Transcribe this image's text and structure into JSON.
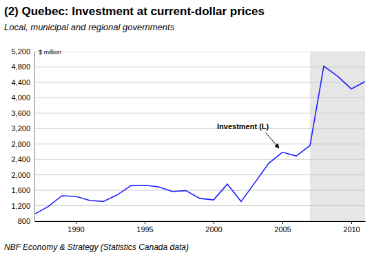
{
  "chart_data": {
    "type": "line",
    "title": "(2) Quebec: Investment at current-dollar prices",
    "subtitle": "Local, municipal and regional governments",
    "y_label": "$ million",
    "source": "NBF Economy & Strategy (Statistics Canada data)",
    "x": [
      1987,
      1988,
      1989,
      1990,
      1991,
      1992,
      1993,
      1994,
      1995,
      1996,
      1997,
      1998,
      1999,
      2000,
      2001,
      2002,
      2003,
      2004,
      2005,
      2006,
      2007,
      2008,
      2009,
      2010,
      2011
    ],
    "values": [
      980,
      1180,
      1460,
      1440,
      1340,
      1310,
      1480,
      1720,
      1730,
      1690,
      1570,
      1590,
      1390,
      1350,
      1760,
      1310,
      1800,
      2300,
      2590,
      2490,
      2760,
      4820,
      4560,
      4230,
      4420
    ],
    "color": "#1f1fff",
    "xlim": [
      1987,
      2011
    ],
    "xticks": [
      1990,
      1995,
      2000,
      2005,
      2010
    ],
    "ylim": [
      800,
      5200
    ],
    "yticks": [
      800,
      {
        "value": 1200,
        "label": "1,200"
      },
      {
        "value": 1600,
        "label": "1,600"
      },
      {
        "value": 2000,
        "label": "2,000"
      },
      {
        "value": 2400,
        "label": "2,400"
      },
      {
        "value": 2800,
        "label": "2,800"
      },
      {
        "value": 3200,
        "label": "3,200"
      },
      {
        "value": 3600,
        "label": "3,600"
      },
      {
        "value": 4000,
        "label": "4,000"
      },
      {
        "value": 4400,
        "label": "4,400"
      },
      {
        "value": 4800,
        "label": "4,800"
      },
      {
        "value": 5200,
        "label": "5,200"
      }
    ],
    "grid": true,
    "shaded": [
      2007,
      2011
    ],
    "annotations": [
      {
        "text": "Investment (L)",
        "x": 2005,
        "y": 2590
      }
    ]
  }
}
